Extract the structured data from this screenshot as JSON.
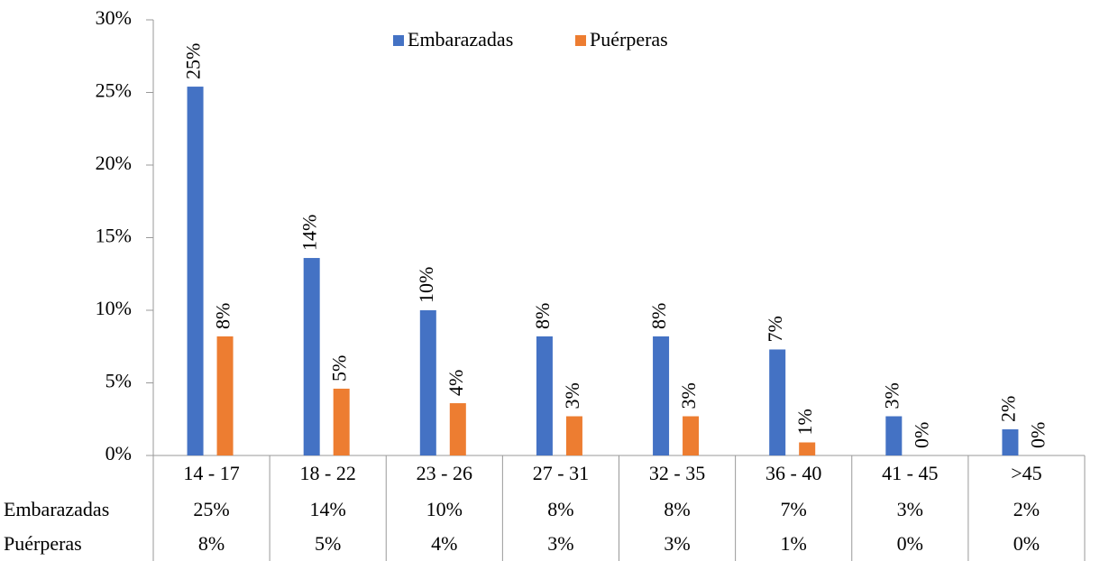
{
  "chart_data": {
    "type": "bar",
    "categories": [
      "14 -  17",
      "18 - 22",
      "23 - 26",
      "27 - 31",
      "32 - 35",
      "36 -  40",
      "41 - 45",
      ">45"
    ],
    "series": [
      {
        "name": "Embarazadas",
        "color": "#4472c4",
        "values": [
          25.4,
          13.6,
          10.0,
          8.2,
          8.2,
          7.3,
          2.7,
          1.8
        ],
        "value_labels": [
          "25%",
          "14%",
          "10%",
          "8%",
          "8%",
          "7%",
          "3%",
          "2%"
        ]
      },
      {
        "name": "Puérperas",
        "color": "#ed7d31",
        "values": [
          8.2,
          4.6,
          3.6,
          2.7,
          2.7,
          0.9,
          0,
          0
        ],
        "value_labels": [
          "8%",
          "5%",
          "4%",
          "3%",
          "3%",
          "1%",
          "0%",
          "0%"
        ]
      }
    ],
    "ylim": [
      0,
      30
    ],
    "yticks": [
      {
        "value": 0,
        "label": "0%"
      },
      {
        "value": 5,
        "label": "5%"
      },
      {
        "value": 10,
        "label": "10%"
      },
      {
        "value": 15,
        "label": "15%"
      },
      {
        "value": 20,
        "label": "20%"
      },
      {
        "value": 25,
        "label": "25%"
      },
      {
        "value": 30,
        "label": "30%"
      }
    ],
    "legend": "top"
  }
}
